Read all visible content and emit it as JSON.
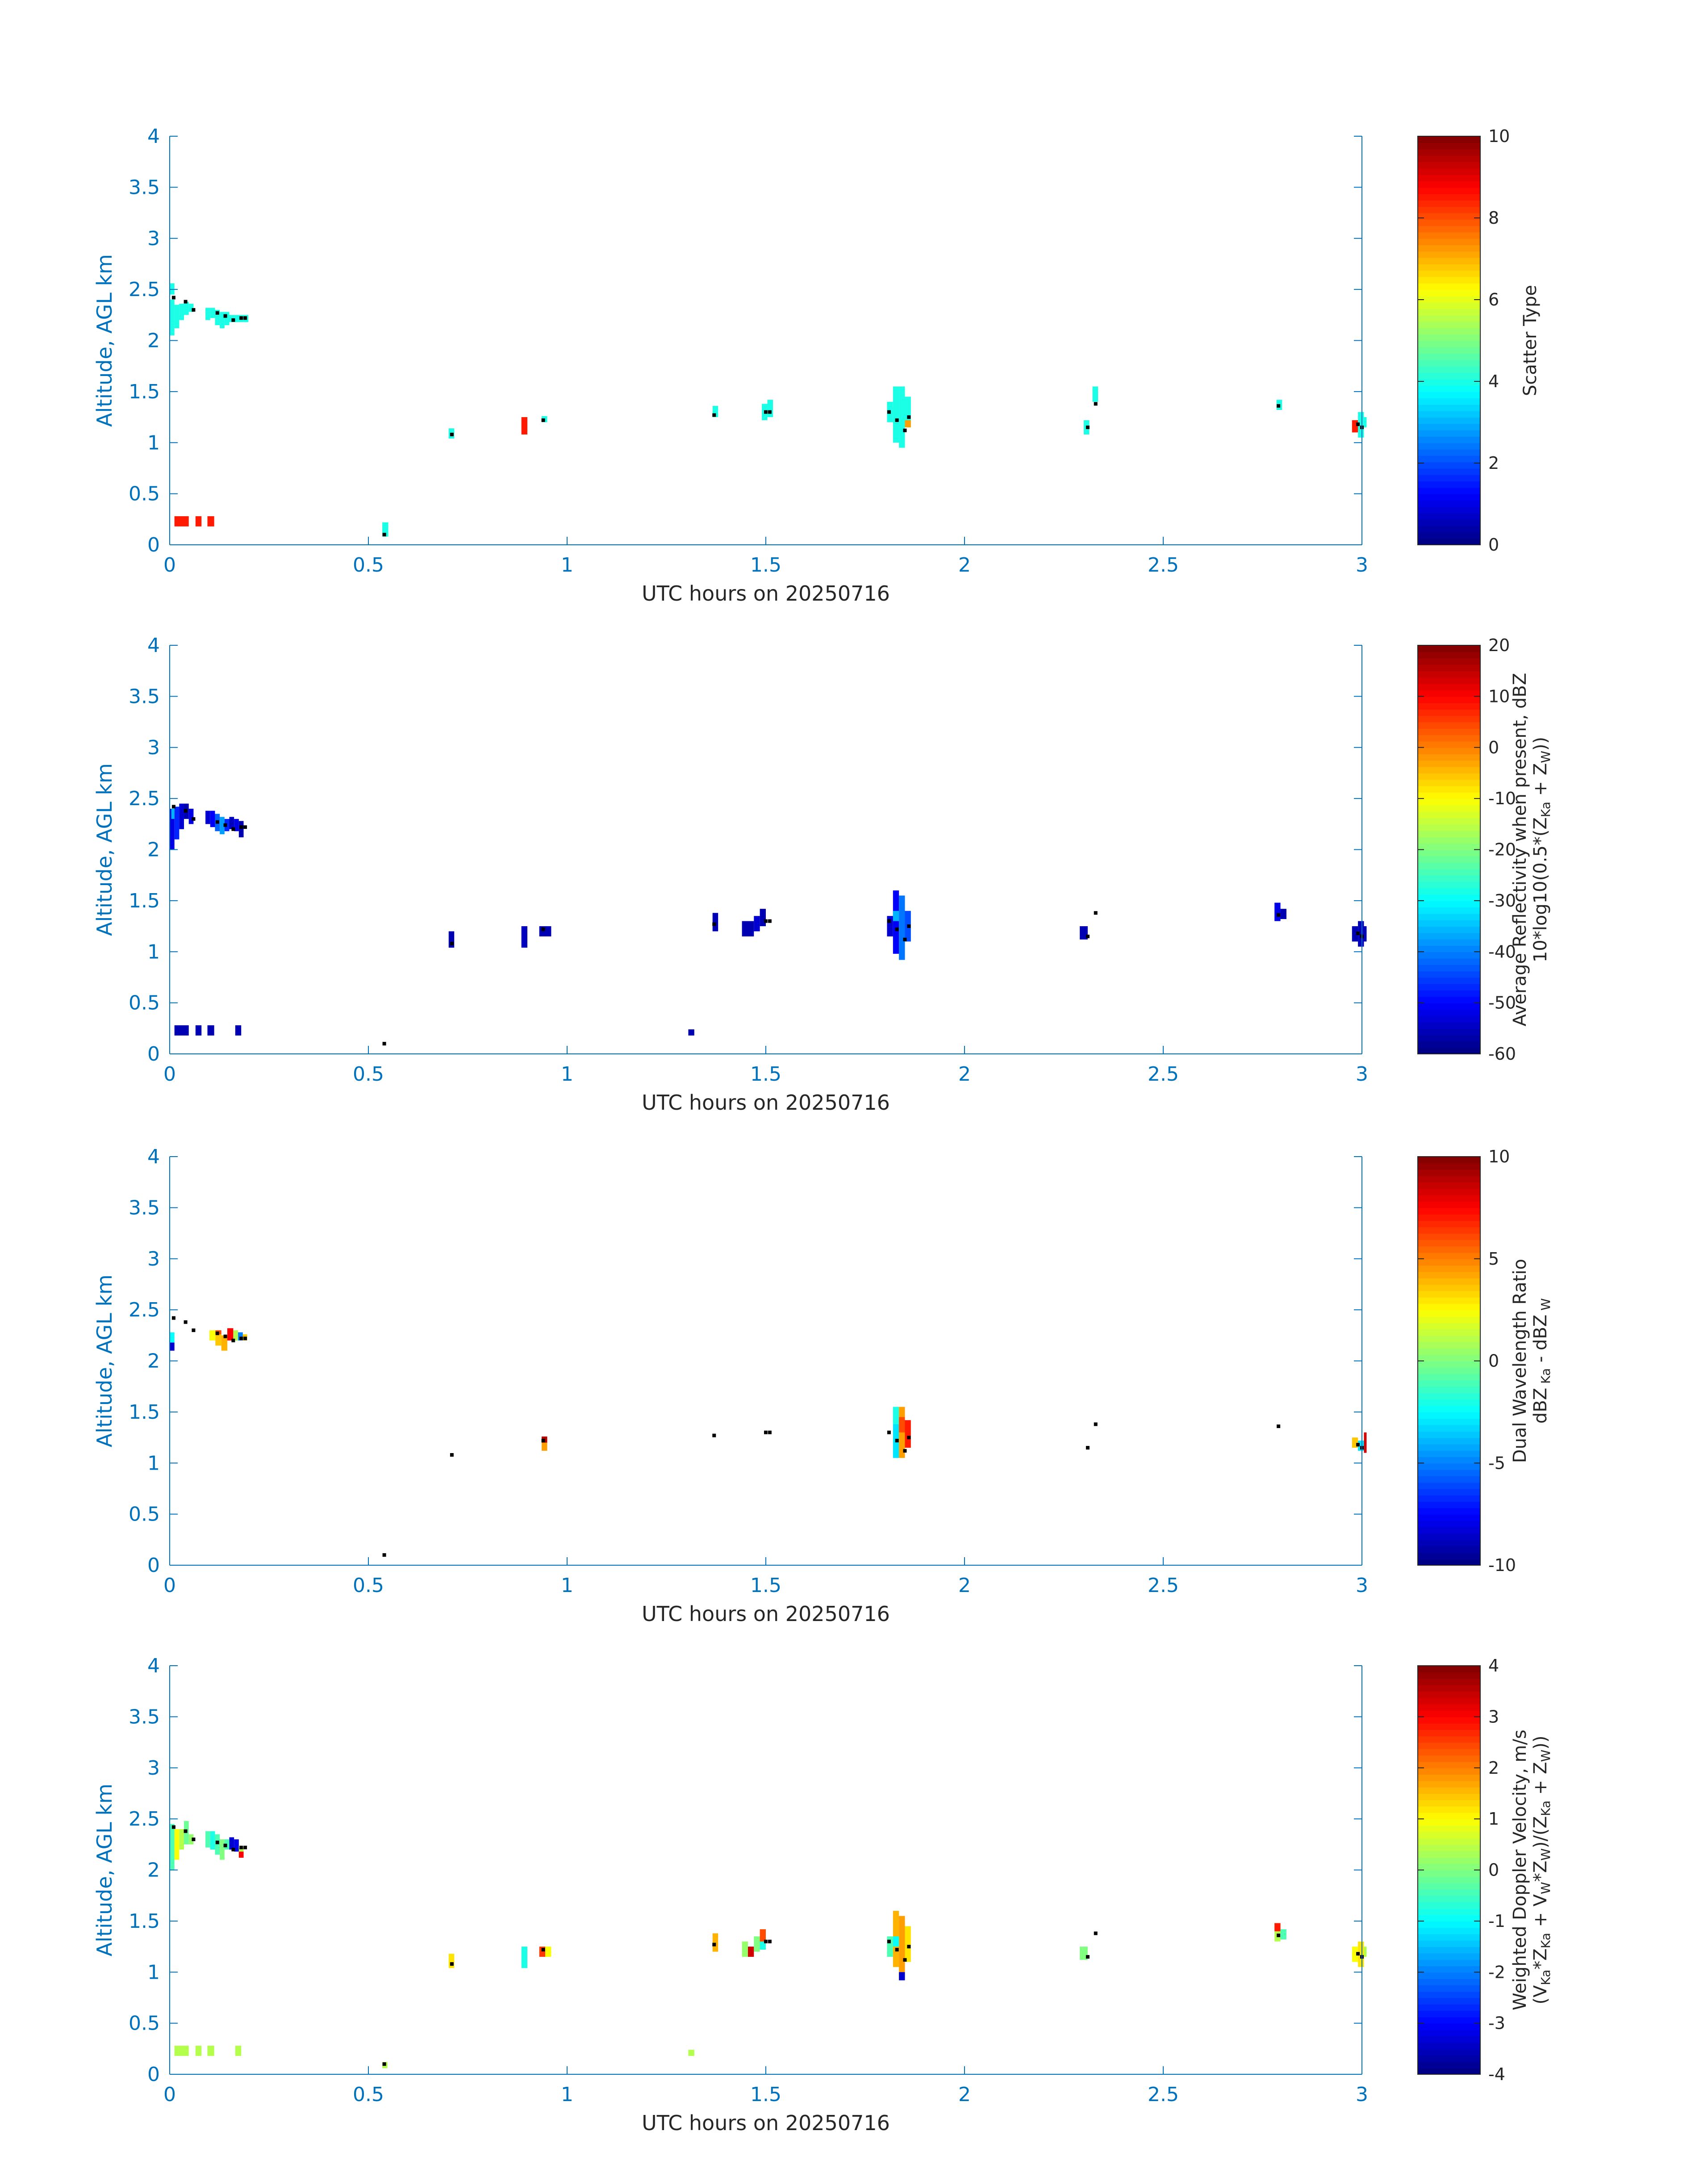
{
  "xlabel": "UTC hours on 20250716",
  "ylabel": "Altitude, AGL km",
  "chart_data": [
    {
      "type": "heatmap",
      "xlim": [
        0,
        3
      ],
      "ylim": [
        0,
        4
      ],
      "x_ticks": [
        "0",
        "0.5",
        "1",
        "1.5",
        "2",
        "2.5",
        "3"
      ],
      "y_ticks": [
        "0",
        "0.5",
        "1",
        "1.5",
        "2",
        "2.5",
        "3",
        "3.5",
        "4"
      ],
      "colormap": "jet",
      "clim": [
        0,
        10
      ],
      "colorbar_ticks": [
        "0",
        "2",
        "4",
        "6",
        "8",
        "10"
      ],
      "colorbar_label": [
        {
          "t": "Scatter Type"
        }
      ],
      "cells": [
        [
          0.0,
          0.012,
          2.05,
          2.4,
          0.4
        ],
        [
          0.012,
          0.024,
          2.12,
          2.35,
          0.4
        ],
        [
          0.024,
          0.036,
          2.2,
          2.36,
          0.4
        ],
        [
          0.036,
          0.048,
          2.25,
          2.38,
          0.4
        ],
        [
          0.048,
          0.06,
          2.28,
          2.36,
          0.4
        ],
        [
          0.0,
          0.012,
          2.45,
          2.56,
          0.4
        ],
        [
          0.09,
          0.102,
          2.2,
          2.32,
          0.4
        ],
        [
          0.102,
          0.114,
          2.22,
          2.32,
          0.4
        ],
        [
          0.114,
          0.126,
          2.15,
          2.3,
          0.4
        ],
        [
          0.126,
          0.138,
          2.12,
          2.28,
          0.4
        ],
        [
          0.138,
          0.15,
          2.15,
          2.28,
          0.4
        ],
        [
          0.15,
          0.162,
          2.18,
          2.25,
          0.4
        ],
        [
          0.162,
          0.174,
          2.18,
          2.25,
          0.4
        ],
        [
          0.174,
          0.186,
          2.18,
          2.25,
          0.4
        ],
        [
          0.186,
          0.198,
          2.18,
          2.25,
          0.4
        ],
        [
          0.012,
          0.048,
          0.18,
          0.28,
          0.85
        ],
        [
          0.065,
          0.08,
          0.18,
          0.28,
          0.85
        ],
        [
          0.095,
          0.112,
          0.18,
          0.28,
          0.85
        ],
        [
          0.535,
          0.55,
          0.08,
          0.22,
          0.4
        ],
        [
          0.702,
          0.716,
          1.04,
          1.14,
          0.4
        ],
        [
          0.885,
          0.9,
          1.08,
          1.25,
          0.85
        ],
        [
          0.936,
          0.95,
          1.2,
          1.26,
          0.4
        ],
        [
          1.366,
          1.38,
          1.25,
          1.36,
          0.4
        ],
        [
          1.49,
          1.504,
          1.22,
          1.38,
          0.4
        ],
        [
          1.504,
          1.518,
          1.25,
          1.42,
          0.4
        ],
        [
          1.805,
          1.82,
          1.2,
          1.4,
          0.4
        ],
        [
          1.82,
          1.835,
          1.0,
          1.55,
          0.4
        ],
        [
          1.835,
          1.85,
          0.95,
          1.55,
          0.4
        ],
        [
          1.85,
          1.865,
          1.15,
          1.45,
          0.4
        ],
        [
          1.85,
          1.865,
          1.15,
          1.22,
          0.72
        ],
        [
          2.3,
          2.314,
          1.08,
          1.22,
          0.4
        ],
        [
          2.322,
          2.336,
          1.4,
          1.55,
          0.4
        ],
        [
          2.785,
          2.799,
          1.32,
          1.42,
          0.4
        ],
        [
          2.975,
          2.99,
          1.1,
          1.22,
          0.85
        ],
        [
          2.99,
          3.005,
          1.05,
          1.3,
          0.4
        ],
        [
          3.005,
          3.01,
          1.15,
          1.25,
          0.4
        ]
      ]
    },
    {
      "type": "heatmap",
      "xlim": [
        0,
        3
      ],
      "ylim": [
        0,
        4
      ],
      "x_ticks": [
        "0",
        "0.5",
        "1",
        "1.5",
        "2",
        "2.5",
        "3"
      ],
      "y_ticks": [
        "0",
        "0.5",
        "1",
        "1.5",
        "2",
        "2.5",
        "3",
        "3.5",
        "4"
      ],
      "colormap": "jet",
      "clim": [
        -60,
        20
      ],
      "colorbar_ticks": [
        "-60",
        "-50",
        "-40",
        "-30",
        "-20",
        "-10",
        "0",
        "10",
        "20"
      ],
      "colorbar_label": [
        {
          "t": "Average Reflectivity when present, dBZ"
        },
        {
          "t": "10*log10(0.5*(Z",
          "sub": "Ka",
          "t2": " + Z",
          "sub2": "W",
          "t3": "))"
        }
      ],
      "cells": [
        [
          0.0,
          0.012,
          2.0,
          2.4,
          0.1
        ],
        [
          0.012,
          0.024,
          2.1,
          2.42,
          0.16
        ],
        [
          0.024,
          0.036,
          2.2,
          2.45,
          0.08
        ],
        [
          0.036,
          0.048,
          2.3,
          2.45,
          0.05
        ],
        [
          0.048,
          0.06,
          2.25,
          2.4,
          0.1
        ],
        [
          0.004,
          0.012,
          2.3,
          2.4,
          0.3
        ],
        [
          0.09,
          0.102,
          2.25,
          2.38,
          0.08
        ],
        [
          0.102,
          0.114,
          2.22,
          2.38,
          0.12
        ],
        [
          0.114,
          0.126,
          2.18,
          2.35,
          0.22
        ],
        [
          0.126,
          0.138,
          2.15,
          2.32,
          0.28
        ],
        [
          0.138,
          0.15,
          2.18,
          2.3,
          0.16
        ],
        [
          0.15,
          0.162,
          2.2,
          2.32,
          0.06
        ],
        [
          0.162,
          0.174,
          2.18,
          2.3,
          0.1
        ],
        [
          0.174,
          0.186,
          2.12,
          2.28,
          0.05
        ],
        [
          0.012,
          0.048,
          0.18,
          0.28,
          0.05
        ],
        [
          0.065,
          0.08,
          0.18,
          0.28,
          0.05
        ],
        [
          0.095,
          0.112,
          0.18,
          0.28,
          0.05
        ],
        [
          0.165,
          0.18,
          0.18,
          0.28,
          0.05
        ],
        [
          0.702,
          0.716,
          1.04,
          1.2,
          0.05
        ],
        [
          0.885,
          0.9,
          1.04,
          1.25,
          0.06
        ],
        [
          0.93,
          0.96,
          1.15,
          1.25,
          0.05
        ],
        [
          1.305,
          1.32,
          0.18,
          0.24,
          0.05
        ],
        [
          1.366,
          1.38,
          1.2,
          1.38,
          0.05
        ],
        [
          1.44,
          1.47,
          1.15,
          1.3,
          0.05
        ],
        [
          1.47,
          1.485,
          1.2,
          1.35,
          0.08
        ],
        [
          1.485,
          1.5,
          1.25,
          1.42,
          0.05
        ],
        [
          1.805,
          1.82,
          1.15,
          1.35,
          0.08
        ],
        [
          1.82,
          1.835,
          0.98,
          1.6,
          0.12
        ],
        [
          1.835,
          1.85,
          0.92,
          1.55,
          0.24
        ],
        [
          1.85,
          1.865,
          1.1,
          1.4,
          0.2
        ],
        [
          1.82,
          1.835,
          1.3,
          1.4,
          0.3
        ],
        [
          2.29,
          2.31,
          1.12,
          1.25,
          0.05
        ],
        [
          2.78,
          2.795,
          1.3,
          1.48,
          0.1
        ],
        [
          2.795,
          2.81,
          1.32,
          1.42,
          0.05
        ],
        [
          2.975,
          2.99,
          1.1,
          1.25,
          0.05
        ],
        [
          2.99,
          3.005,
          1.05,
          1.3,
          0.06
        ],
        [
          3.005,
          3.01,
          1.1,
          1.25,
          0.05
        ]
      ]
    },
    {
      "type": "heatmap",
      "xlim": [
        0,
        3
      ],
      "ylim": [
        0,
        4
      ],
      "x_ticks": [
        "0",
        "0.5",
        "1",
        "1.5",
        "2",
        "2.5",
        "3"
      ],
      "y_ticks": [
        "0",
        "0.5",
        "1",
        "1.5",
        "2",
        "2.5",
        "3",
        "3.5",
        "4"
      ],
      "colormap": "jet",
      "clim": [
        -10,
        10
      ],
      "colorbar_ticks": [
        "-10",
        "-5",
        "0",
        "5",
        "10"
      ],
      "colorbar_label": [
        {
          "t": "Dual Wavelength Ratio"
        },
        {
          "t": "dBZ",
          "sub": " Ka",
          "t2": " - dBZ",
          "sub2": " W"
        }
      ],
      "cells": [
        [
          0.0,
          0.012,
          2.1,
          2.18,
          0.08
        ],
        [
          0.0,
          0.012,
          2.18,
          2.28,
          0.38
        ],
        [
          0.1,
          0.115,
          2.2,
          2.3,
          0.62
        ],
        [
          0.115,
          0.13,
          2.15,
          2.28,
          0.68
        ],
        [
          0.13,
          0.145,
          2.1,
          2.25,
          0.7
        ],
        [
          0.145,
          0.16,
          2.2,
          2.32,
          0.88
        ],
        [
          0.16,
          0.172,
          2.2,
          2.3,
          0.55
        ],
        [
          0.172,
          0.184,
          2.2,
          2.28,
          0.25
        ],
        [
          0.184,
          0.195,
          2.2,
          2.26,
          0.68
        ],
        [
          0.115,
          0.13,
          2.26,
          2.3,
          0.8
        ],
        [
          0.936,
          0.95,
          1.12,
          1.2,
          0.72
        ],
        [
          0.936,
          0.95,
          1.2,
          1.26,
          0.95
        ],
        [
          1.82,
          1.835,
          1.05,
          1.55,
          0.35
        ],
        [
          1.835,
          1.85,
          1.05,
          1.55,
          0.72
        ],
        [
          1.85,
          1.865,
          1.15,
          1.42,
          0.85
        ],
        [
          1.82,
          1.835,
          1.38,
          1.55,
          0.4
        ],
        [
          1.835,
          1.85,
          1.3,
          1.45,
          0.8
        ],
        [
          2.975,
          2.99,
          1.15,
          1.25,
          0.68
        ],
        [
          2.99,
          3.005,
          1.12,
          1.22,
          0.35
        ],
        [
          3.005,
          3.01,
          1.1,
          1.3,
          0.92
        ]
      ]
    },
    {
      "type": "heatmap",
      "xlim": [
        0,
        3
      ],
      "ylim": [
        0,
        4
      ],
      "x_ticks": [
        "0",
        "0.5",
        "1",
        "1.5",
        "2",
        "2.5",
        "3"
      ],
      "y_ticks": [
        "0",
        "0.5",
        "1",
        "1.5",
        "2",
        "2.5",
        "3",
        "3.5",
        "4"
      ],
      "colormap": "jet",
      "clim": [
        -4,
        4
      ],
      "colorbar_ticks": [
        "-4",
        "-3",
        "-2",
        "-1",
        "0",
        "1",
        "2",
        "3",
        "4"
      ],
      "colorbar_label": [
        {
          "t": "Weighted Doppler Velocity, m/s"
        },
        {
          "t": "(V",
          "sub": "Ka",
          "t2": "*Z",
          "sub2": "Ka",
          "t3": " + V",
          "sub3": "W",
          "t4": "*Z",
          "sub4": "W",
          "t5": ")/(Z",
          "sub5": "Ka",
          "t6": " + Z",
          "sub6": "W",
          "t7": "))"
        }
      ],
      "cells": [
        [
          0.0,
          0.012,
          2.0,
          2.45,
          0.45
        ],
        [
          0.012,
          0.024,
          2.1,
          2.4,
          0.62
        ],
        [
          0.024,
          0.036,
          2.2,
          2.4,
          0.55
        ],
        [
          0.036,
          0.048,
          2.25,
          2.48,
          0.48
        ],
        [
          0.048,
          0.06,
          2.25,
          2.35,
          0.52
        ],
        [
          0.09,
          0.102,
          2.22,
          2.38,
          0.45
        ],
        [
          0.102,
          0.114,
          2.2,
          2.38,
          0.4
        ],
        [
          0.114,
          0.126,
          2.15,
          2.35,
          0.45
        ],
        [
          0.126,
          0.138,
          2.1,
          2.3,
          0.5
        ],
        [
          0.138,
          0.15,
          2.2,
          2.3,
          0.45
        ],
        [
          0.15,
          0.162,
          2.2,
          2.32,
          0.08
        ],
        [
          0.162,
          0.174,
          2.18,
          2.3,
          0.1
        ],
        [
          0.174,
          0.186,
          2.12,
          2.22,
          0.55
        ],
        [
          0.174,
          0.186,
          2.12,
          2.18,
          0.88
        ],
        [
          0.012,
          0.048,
          0.18,
          0.28,
          0.55
        ],
        [
          0.065,
          0.08,
          0.18,
          0.28,
          0.55
        ],
        [
          0.095,
          0.112,
          0.18,
          0.28,
          0.55
        ],
        [
          0.165,
          0.18,
          0.18,
          0.28,
          0.55
        ],
        [
          0.535,
          0.548,
          0.06,
          0.12,
          0.55
        ],
        [
          0.702,
          0.716,
          1.04,
          1.18,
          0.65
        ],
        [
          0.885,
          0.9,
          1.04,
          1.25,
          0.4
        ],
        [
          0.93,
          0.945,
          1.15,
          1.25,
          0.82
        ],
        [
          0.945,
          0.96,
          1.15,
          1.25,
          0.62
        ],
        [
          1.305,
          1.32,
          0.18,
          0.24,
          0.55
        ],
        [
          1.366,
          1.38,
          1.2,
          1.38,
          0.7
        ],
        [
          1.44,
          1.455,
          1.15,
          1.3,
          0.52
        ],
        [
          1.455,
          1.47,
          1.15,
          1.25,
          0.92
        ],
        [
          1.47,
          1.485,
          1.2,
          1.35,
          0.5
        ],
        [
          1.485,
          1.5,
          1.25,
          1.42,
          0.8
        ],
        [
          1.485,
          1.5,
          1.22,
          1.3,
          0.4
        ],
        [
          1.805,
          1.82,
          1.15,
          1.35,
          0.45
        ],
        [
          1.82,
          1.835,
          1.05,
          1.6,
          0.7
        ],
        [
          1.835,
          1.85,
          0.92,
          1.55,
          0.72
        ],
        [
          1.85,
          1.865,
          1.1,
          1.45,
          0.65
        ],
        [
          1.835,
          1.85,
          0.92,
          1.0,
          0.08
        ],
        [
          1.82,
          1.835,
          1.25,
          1.35,
          0.38
        ],
        [
          2.29,
          2.31,
          1.12,
          1.25,
          0.5
        ],
        [
          2.78,
          2.795,
          1.3,
          1.48,
          0.55
        ],
        [
          2.78,
          2.795,
          1.4,
          1.48,
          0.85
        ],
        [
          2.795,
          2.81,
          1.32,
          1.42,
          0.45
        ],
        [
          2.975,
          2.99,
          1.1,
          1.25,
          0.62
        ],
        [
          2.99,
          3.005,
          1.05,
          1.3,
          0.65
        ],
        [
          3.005,
          3.01,
          1.15,
          1.25,
          0.55
        ]
      ]
    }
  ],
  "markers": [
    [
      0.01,
      2.42
    ],
    [
      0.04,
      2.38
    ],
    [
      0.06,
      2.3
    ],
    [
      0.12,
      2.27
    ],
    [
      0.14,
      2.24
    ],
    [
      0.16,
      2.2
    ],
    [
      0.18,
      2.22
    ],
    [
      0.19,
      2.22
    ],
    [
      0.54,
      0.1
    ],
    [
      0.71,
      1.08
    ],
    [
      0.94,
      1.22
    ],
    [
      1.37,
      1.27
    ],
    [
      1.5,
      1.3
    ],
    [
      1.51,
      1.3
    ],
    [
      1.81,
      1.3
    ],
    [
      1.83,
      1.22
    ],
    [
      1.85,
      1.12
    ],
    [
      1.86,
      1.25
    ],
    [
      2.31,
      1.15
    ],
    [
      2.33,
      1.38
    ],
    [
      2.79,
      1.36
    ],
    [
      2.99,
      1.18
    ],
    [
      3.0,
      1.15
    ]
  ]
}
